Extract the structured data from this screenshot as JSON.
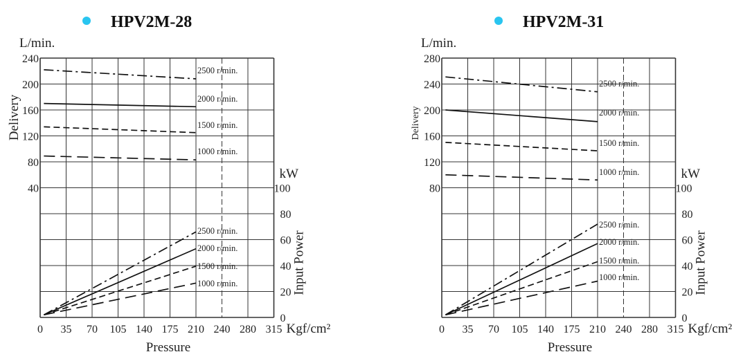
{
  "colors": {
    "bullet": "#29c5f0",
    "grid": "#333333",
    "line": "#111111"
  },
  "chart_data": [
    {
      "type": "line",
      "title": "HPV2M-28",
      "xlabel": "Pressure",
      "xunit": "Kgf/cm²",
      "x_ticks": [
        "0",
        "35",
        "70",
        "105",
        "140",
        "175",
        "210",
        "240",
        "280",
        "315"
      ],
      "left_axis": {
        "label": "Delivery",
        "unit": "L/min.",
        "ticks": [
          "240",
          "200",
          "160",
          "120",
          "80",
          "40"
        ],
        "range": [
          40,
          240
        ]
      },
      "right_axis": {
        "label": "Input Power",
        "unit": "kW",
        "ticks": [
          "100",
          "80",
          "60",
          "40",
          "20",
          "0"
        ],
        "range": [
          0,
          100
        ]
      },
      "grid": true,
      "delivery_series": [
        {
          "name": "2500 r/min.",
          "style": "dash-dot",
          "x": [
            5,
            210
          ],
          "y": [
            222,
            208
          ]
        },
        {
          "name": "2000 r/min.",
          "style": "solid",
          "x": [
            5,
            210
          ],
          "y": [
            170,
            165
          ]
        },
        {
          "name": "1500 r/min.",
          "style": "dashed",
          "x": [
            5,
            210
          ],
          "y": [
            134,
            125
          ]
        },
        {
          "name": "1000 r/min.",
          "style": "long-dash",
          "x": [
            5,
            210
          ],
          "y": [
            89,
            83
          ]
        }
      ],
      "power_series": [
        {
          "name": "2500 r/min.",
          "style": "dash-dot",
          "x": [
            5,
            210
          ],
          "y": [
            2,
            66
          ]
        },
        {
          "name": "2000 r/min.",
          "style": "solid",
          "x": [
            5,
            210
          ],
          "y": [
            2,
            53
          ]
        },
        {
          "name": "1500 r/min.",
          "style": "dashed",
          "x": [
            5,
            210
          ],
          "y": [
            2,
            39.5
          ]
        },
        {
          "name": "1000 r/min.",
          "style": "long-dash",
          "x": [
            5,
            210
          ],
          "y": [
            2,
            26.5
          ]
        }
      ]
    },
    {
      "type": "line",
      "title": "HPV2M-31",
      "xlabel": "Pressure",
      "xunit": "Kgf/cm²",
      "x_ticks": [
        "0",
        "35",
        "70",
        "105",
        "140",
        "175",
        "210",
        "240",
        "280",
        "315"
      ],
      "left_axis": {
        "label": "Delivery",
        "unit": "L/min.",
        "ticks": [
          "280",
          "240",
          "200",
          "160",
          "120",
          "80"
        ],
        "range": [
          80,
          280
        ]
      },
      "right_axis": {
        "label": "Input Power",
        "unit": "kW",
        "ticks": [
          "100",
          "80",
          "60",
          "40",
          "20",
          "0"
        ],
        "range": [
          0,
          100
        ]
      },
      "grid": true,
      "delivery_series": [
        {
          "name": "2500 r/min.",
          "style": "dash-dot",
          "x": [
            5,
            210
          ],
          "y": [
            251,
            228
          ]
        },
        {
          "name": "2000 r/min.",
          "style": "solid",
          "x": [
            5,
            210
          ],
          "y": [
            200,
            182
          ]
        },
        {
          "name": "1500 r/min.",
          "style": "dashed",
          "x": [
            5,
            210
          ],
          "y": [
            150,
            137
          ]
        },
        {
          "name": "1000 r/min.",
          "style": "long-dash",
          "x": [
            5,
            210
          ],
          "y": [
            100,
            92
          ]
        }
      ],
      "power_series": [
        {
          "name": "2500 r/min.",
          "style": "dash-dot",
          "x": [
            5,
            210
          ],
          "y": [
            2,
            72
          ]
        },
        {
          "name": "2000 r/min.",
          "style": "solid",
          "x": [
            5,
            210
          ],
          "y": [
            2,
            57
          ]
        },
        {
          "name": "1500 r/min.",
          "style": "dashed",
          "x": [
            5,
            210
          ],
          "y": [
            2,
            43
          ]
        },
        {
          "name": "1000 r/min.",
          "style": "long-dash",
          "x": [
            5,
            210
          ],
          "y": [
            2,
            28
          ]
        }
      ]
    }
  ]
}
